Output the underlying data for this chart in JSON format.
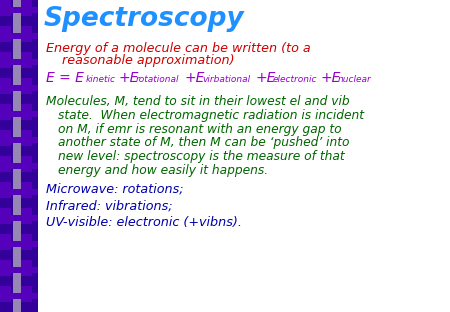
{
  "title": "Spectroscopy",
  "title_color": "#1E90FF",
  "bg_color": "#FFFFFF",
  "sidebar_dark": "#330099",
  "sidebar_mid": "#5500BB",
  "sidebar_light": "#C0C0C0",
  "line1_text": "Energy of a molecule can be written (to a",
  "line2_text": "    reasonable approximation)",
  "line1_color": "#CC0000",
  "eq_color": "#9900CC",
  "para_color": "#006600",
  "bullet_color": "#0000AA",
  "para_lines": [
    "Molecules, M, tend to sit in their lowest el and vib",
    "state.  When electromagnetic radiation is incident",
    "on M, if emr is resonant with an energy gap to",
    "another state of M, then M can be ‘pushed’ into",
    "new level: spectroscopy is the measure of that",
    "energy and how easily it happens."
  ],
  "bullet1": "Microwave: rotations;",
  "bullet2": "Infrared: vibrations;",
  "bullet3": "UV-visible: electronic (+vibns).",
  "figw": 4.5,
  "figh": 3.12,
  "dpi": 100
}
